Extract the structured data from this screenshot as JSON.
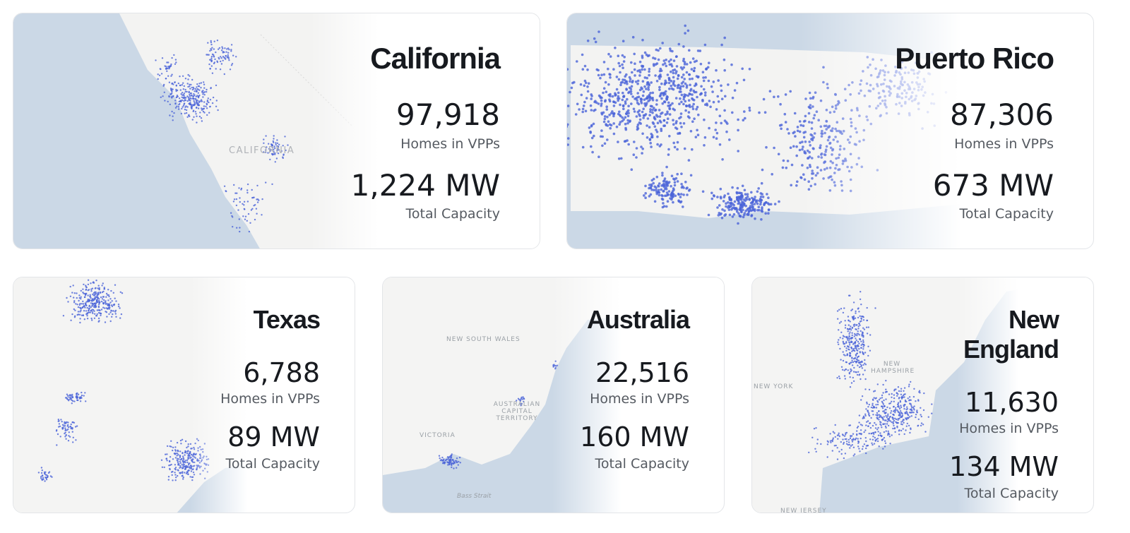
{
  "cards": [
    {
      "title": "California",
      "homes": "97,918",
      "homes_label": "Homes in VPPs",
      "capacity": "1,224 MW",
      "capacity_label": "Total Capacity",
      "map_labels": [
        "CALIFORNIA"
      ]
    },
    {
      "title": "Puerto Rico",
      "homes": "87,306",
      "homes_label": "Homes in VPPs",
      "capacity": "673 MW",
      "capacity_label": "Total Capacity",
      "map_labels": []
    },
    {
      "title": "Texas",
      "homes": "6,788",
      "homes_label": "Homes in VPPs",
      "capacity": "89 MW",
      "capacity_label": "Total Capacity",
      "map_labels": []
    },
    {
      "title": "Australia",
      "homes": "22,516",
      "homes_label": "Homes in VPPs",
      "capacity": "160 MW",
      "capacity_label": "Total Capacity",
      "map_labels": [
        "NEW SOUTH WALES",
        "AUSTRALIAN CAPITAL TERRITORY",
        "VICTORIA",
        "Bass Strait"
      ]
    },
    {
      "title": "New England",
      "homes": "11,630",
      "homes_label": "Homes in VPPs",
      "capacity": "134 MW",
      "capacity_label": "Total Capacity",
      "map_labels": [
        "NEW YORK",
        "NEW HAMPSHIRE",
        "NEW JERSEY"
      ]
    }
  ]
}
